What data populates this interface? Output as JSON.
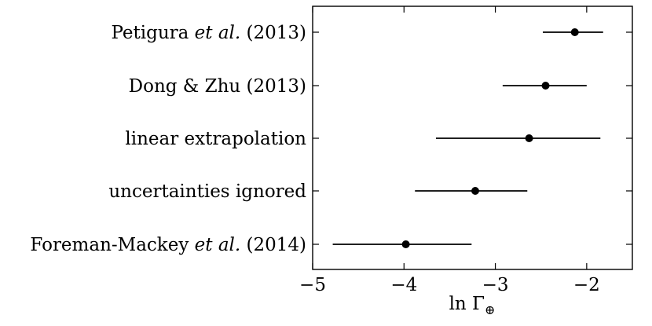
{
  "chart_data": {
    "type": "scatter",
    "style": "point estimates with horizontal error bars",
    "categories": [
      {
        "parts": [
          "Petigura ",
          "et al.",
          " (2013)"
        ],
        "italic": [
          false,
          true,
          false
        ],
        "value": -2.13,
        "low": -2.48,
        "high": -1.82
      },
      {
        "parts": [
          "Dong & Zhu (2013)"
        ],
        "italic": [
          false
        ],
        "value": -2.45,
        "low": -2.92,
        "high": -2.0
      },
      {
        "parts": [
          "linear extrapolation"
        ],
        "italic": [
          false
        ],
        "value": -2.63,
        "low": -3.65,
        "high": -1.85
      },
      {
        "parts": [
          "uncertainties ignored"
        ],
        "italic": [
          false
        ],
        "value": -3.22,
        "low": -3.88,
        "high": -2.65
      },
      {
        "parts": [
          "Foreman-Mackey ",
          "et al.",
          " (2014)"
        ],
        "italic": [
          false,
          true,
          false
        ],
        "value": -3.98,
        "low": -4.78,
        "high": -3.26
      }
    ],
    "xlim": [
      -5,
      -1.5
    ],
    "xticks": [
      -5,
      -4,
      -3,
      -2
    ],
    "xtick_labels": [
      "−5",
      "−4",
      "−3",
      "−2"
    ],
    "xlabel": {
      "base": "ln Γ",
      "subscript": "⊕"
    },
    "grid": false,
    "marker_color": "#000000"
  }
}
